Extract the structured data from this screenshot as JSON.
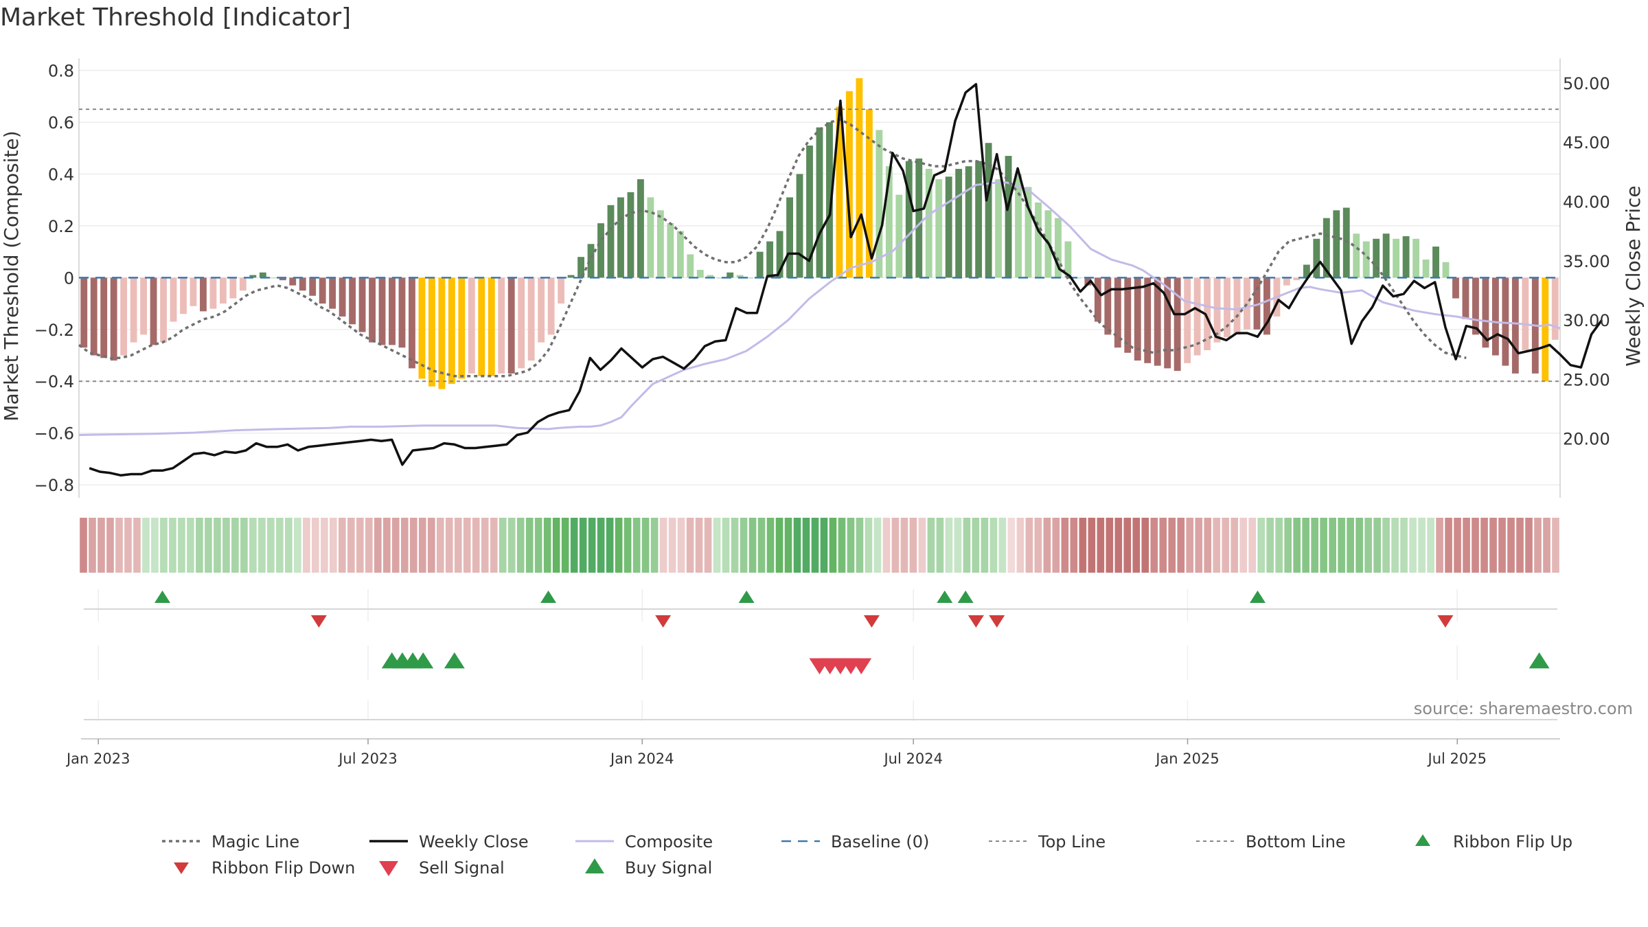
{
  "chart_data": {
    "type": "bar",
    "title": "Market Threshold [Indicator]",
    "ylabel_left": "Market Threshold (Composite)",
    "ylabel_right": "Weekly Close Price",
    "source_note": "source: sharemaestro.com",
    "x_start": "2022-12-19",
    "x_end": "2025-09-08",
    "ylim_left": [
      -0.85,
      0.82
    ],
    "ylim_right": [
      15.0,
      51.5
    ],
    "yticks_left": [
      {
        "v": 0.8,
        "label": "0.8"
      },
      {
        "v": 0.6,
        "label": "0.6"
      },
      {
        "v": 0.4,
        "label": "0.4"
      },
      {
        "v": 0.2,
        "label": "0.2"
      },
      {
        "v": 0,
        "label": "0"
      },
      {
        "v": -0.2,
        "label": "−0.2"
      },
      {
        "v": -0.4,
        "label": "−0.4"
      },
      {
        "v": -0.6,
        "label": "−0.6"
      },
      {
        "v": -0.8,
        "label": "−0.8"
      }
    ],
    "yticks_right": [
      {
        "v": 50,
        "label": "50.00"
      },
      {
        "v": 45,
        "label": "45.00"
      },
      {
        "v": 40,
        "label": "40.00"
      },
      {
        "v": 35,
        "label": "35.00"
      },
      {
        "v": 30,
        "label": "30.00"
      },
      {
        "v": 25,
        "label": "25.00"
      },
      {
        "v": 20,
        "label": "20.00"
      }
    ],
    "xticks": [
      {
        "date": "2023-01-01",
        "label": "Jan 2023"
      },
      {
        "date": "2023-07-01",
        "label": "Jul 2023"
      },
      {
        "date": "2024-01-01",
        "label": "Jan 2024"
      },
      {
        "date": "2024-07-01",
        "label": "Jul 2024"
      },
      {
        "date": "2025-01-01",
        "label": "Jan 2025"
      },
      {
        "date": "2025-07-01",
        "label": "Jul 2025"
      }
    ],
    "top_line": 0.65,
    "bottom_line": -0.4,
    "baseline": 0,
    "grid": true,
    "colors": {
      "strong_pos": "#5b8a5b",
      "weak_pos": "#a8d5a2",
      "strong_neg": "#a56a68",
      "weak_neg": "#ecbdb8",
      "extreme": "#ffc000",
      "weekly_close": "#111111",
      "composite": "#c2bbe8",
      "magic_line": "#707070",
      "baseline": "#3b7ab0",
      "threshold": "#888888",
      "flip_up": "#2f9a48",
      "flip_down": "#d13b3b",
      "sell": "#e04050",
      "buy": "#2f9a48"
    },
    "composite_bars": [
      -0.27,
      -0.3,
      -0.31,
      -0.32,
      -0.3,
      -0.25,
      -0.22,
      -0.26,
      -0.25,
      -0.17,
      -0.14,
      -0.11,
      -0.13,
      -0.12,
      -0.1,
      -0.08,
      -0.05,
      0.01,
      0.02,
      0.0,
      -0.01,
      -0.03,
      -0.05,
      -0.07,
      -0.1,
      -0.12,
      -0.15,
      -0.18,
      -0.21,
      -0.25,
      -0.26,
      -0.26,
      -0.27,
      -0.35,
      -0.39,
      -0.42,
      -0.43,
      -0.41,
      -0.39,
      -0.37,
      -0.38,
      -0.38,
      -0.37,
      -0.37,
      -0.35,
      -0.32,
      -0.25,
      -0.22,
      -0.1,
      0.01,
      0.08,
      0.13,
      0.21,
      0.28,
      0.31,
      0.33,
      0.38,
      0.31,
      0.26,
      0.21,
      0.18,
      0.09,
      0.03,
      0.01,
      0.0,
      0.02,
      0.01,
      0.0,
      0.1,
      0.14,
      0.18,
      0.31,
      0.4,
      0.51,
      0.58,
      0.6,
      0.66,
      0.72,
      0.77,
      0.65,
      0.57,
      0.43,
      0.32,
      0.45,
      0.46,
      0.42,
      0.38,
      0.39,
      0.42,
      0.43,
      0.45,
      0.52,
      0.38,
      0.47,
      0.4,
      0.35,
      0.29,
      0.26,
      0.23,
      0.14,
      0.0,
      -0.03,
      -0.17,
      -0.22,
      -0.27,
      -0.29,
      -0.32,
      -0.33,
      -0.34,
      -0.35,
      -0.36,
      -0.33,
      -0.3,
      -0.28,
      -0.25,
      -0.23,
      -0.22,
      -0.2,
      -0.2,
      -0.22,
      -0.15,
      -0.03,
      -0.01,
      0.05,
      0.15,
      0.23,
      0.26,
      0.27,
      0.17,
      0.14,
      0.15,
      0.17,
      0.15,
      0.16,
      0.15,
      0.07,
      0.12,
      0.06,
      -0.08,
      -0.16,
      -0.22,
      -0.27,
      -0.3,
      -0.34,
      -0.37,
      -0.28,
      -0.37,
      -0.4,
      -0.24
    ],
    "magic_line": [
      -0.26,
      -0.29,
      -0.3,
      -0.31,
      -0.31,
      -0.3,
      -0.28,
      -0.26,
      -0.25,
      -0.23,
      -0.2,
      -0.18,
      -0.16,
      -0.15,
      -0.13,
      -0.1,
      -0.07,
      -0.05,
      -0.04,
      -0.03,
      -0.04,
      -0.06,
      -0.08,
      -0.11,
      -0.13,
      -0.16,
      -0.19,
      -0.22,
      -0.24,
      -0.26,
      -0.28,
      -0.3,
      -0.32,
      -0.34,
      -0.36,
      -0.37,
      -0.38,
      -0.38,
      -0.38,
      -0.38,
      -0.38,
      -0.38,
      -0.37,
      -0.36,
      -0.33,
      -0.28,
      -0.2,
      -0.11,
      -0.02,
      0.07,
      0.14,
      0.19,
      0.23,
      0.25,
      0.26,
      0.25,
      0.23,
      0.2,
      0.16,
      0.12,
      0.09,
      0.07,
      0.06,
      0.06,
      0.08,
      0.12,
      0.19,
      0.28,
      0.38,
      0.47,
      0.53,
      0.57,
      0.6,
      0.61,
      0.59,
      0.56,
      0.53,
      0.5,
      0.48,
      0.46,
      0.45,
      0.44,
      0.43,
      0.43,
      0.44,
      0.45,
      0.45,
      0.44,
      0.42,
      0.38,
      0.33,
      0.27,
      0.2,
      0.13,
      0.06,
      -0.02,
      -0.08,
      -0.13,
      -0.18,
      -0.21,
      -0.24,
      -0.27,
      -0.28,
      -0.29,
      -0.28,
      -0.28,
      -0.27,
      -0.26,
      -0.24,
      -0.22,
      -0.19,
      -0.15,
      -0.1,
      -0.04,
      0.03,
      0.1,
      0.14,
      0.15,
      0.16,
      0.17,
      0.16,
      0.15,
      0.13,
      0.1,
      0.06,
      0.01,
      -0.05,
      -0.11,
      -0.17,
      -0.22,
      -0.26,
      -0.29,
      -0.3,
      -0.31
    ],
    "magic_line_start": "2022-12-19",
    "weekly_close": [
      17.5,
      17.2,
      17.1,
      16.9,
      17.0,
      17.0,
      17.3,
      17.3,
      17.5,
      18.1,
      18.7,
      18.8,
      18.6,
      18.9,
      18.8,
      19.0,
      19.6,
      19.3,
      19.3,
      19.5,
      19.0,
      19.3,
      19.4,
      19.5,
      19.6,
      19.7,
      19.8,
      19.9,
      19.8,
      19.9,
      17.8,
      19.0,
      19.1,
      19.2,
      19.6,
      19.5,
      19.2,
      19.2,
      19.3,
      19.4,
      19.5,
      20.3,
      20.5,
      21.4,
      21.9,
      22.2,
      22.4,
      24.0,
      26.8,
      25.8,
      26.6,
      27.6,
      26.8,
      26.0,
      26.7,
      26.9,
      26.4,
      25.9,
      26.7,
      27.8,
      28.2,
      28.3,
      31.0,
      30.6,
      30.6,
      33.7,
      33.8,
      35.6,
      35.6,
      35.0,
      37.3,
      38.9,
      48.5,
      37.0,
      38.9,
      35.2,
      38.0,
      44.1,
      42.6,
      39.2,
      39.4,
      42.2,
      42.6,
      46.8,
      49.2,
      49.9,
      40.1,
      44.0,
      39.3,
      42.8,
      39.5,
      37.5,
      36.4,
      34.3,
      33.7,
      32.4,
      33.3,
      32.1,
      32.6,
      32.6,
      32.7,
      32.8,
      33.1,
      32.3,
      30.5,
      30.5,
      31.0,
      30.5,
      28.6,
      28.3,
      28.9,
      28.9,
      28.6,
      29.9,
      31.7,
      31.0,
      32.5,
      33.8,
      34.9,
      33.7,
      32.5,
      28.0,
      29.9,
      31.1,
      32.9,
      32.0,
      32.2,
      33.3,
      32.7,
      33.2,
      29.4,
      26.7,
      29.5,
      29.3,
      28.3,
      28.8,
      28.4,
      27.2,
      27.4,
      27.6,
      27.9,
      27.1,
      26.2,
      26.0,
      28.8,
      30.0
    ],
    "weekly_close_start": "2022-12-26",
    "composite_line": [
      20.3,
      20.4,
      20.5,
      20.7,
      20.8,
      20.9,
      21.0,
      21.0,
      21.1,
      21.1,
      21.1,
      20.9,
      20.8,
      20.9,
      21.0,
      21.0,
      21.1,
      21.4,
      21.8,
      22.8,
      24.6,
      25.8,
      26.3,
      26.7,
      27.4,
      28.6,
      30.0,
      31.8,
      33.2,
      34.4,
      34.9,
      35.8,
      38.5,
      39.2,
      40.3,
      41.4,
      41.6,
      41.6,
      41.0,
      39.5,
      37.9,
      36.0,
      35.1,
      34.6,
      34.2,
      33.0,
      31.6,
      31.0,
      30.9,
      31.3,
      32.0,
      32.7,
      32.8,
      32.6,
      32.3,
      32.5,
      31.5,
      30.8,
      30.5,
      30.3,
      30.0,
      29.8,
      29.7,
      29.5,
      29.6,
      29.3
    ],
    "composite_line_x": [
      "2022-12-19",
      "2023-02-06",
      "2023-03-06",
      "2023-04-03",
      "2023-05-01",
      "2023-06-05",
      "2023-06-19",
      "2023-07-10",
      "2023-08-07",
      "2023-09-04",
      "2023-09-25",
      "2023-10-09",
      "2023-10-30",
      "2023-11-06",
      "2023-11-20",
      "2023-11-27",
      "2023-12-04",
      "2023-12-11",
      "2023-12-18",
      "2023-12-25",
      "2024-01-08",
      "2024-01-29",
      "2024-02-12",
      "2024-02-26",
      "2024-03-11",
      "2024-03-25",
      "2024-04-08",
      "2024-04-22",
      "2024-05-06",
      "2024-05-20",
      "2024-06-03",
      "2024-06-17",
      "2024-07-08",
      "2024-07-15",
      "2024-07-29",
      "2024-08-12",
      "2024-08-26",
      "2024-09-02",
      "2024-09-16",
      "2024-09-30",
      "2024-10-14",
      "2024-10-28",
      "2024-11-11",
      "2024-11-25",
      "2024-12-02",
      "2024-12-16",
      "2024-12-30",
      "2025-01-20",
      "2025-02-03",
      "2025-02-17",
      "2025-03-03",
      "2025-03-17",
      "2025-03-24",
      "2025-03-31",
      "2025-04-14",
      "2025-04-28",
      "2025-05-12",
      "2025-06-02",
      "2025-06-16",
      "2025-06-30",
      "2025-07-14",
      "2025-07-28",
      "2025-08-11",
      "2025-08-25",
      "2025-09-01",
      "2025-09-08"
    ],
    "ribbon": [
      "#ce8a8a",
      "#daa4a4",
      "#daa4a4",
      "#daa4a4",
      "#e4b7b7",
      "#e4b7b7",
      "#e4b7b7",
      "#c6e4c6",
      "#c6e4c6",
      "#b6ddb6",
      "#b6ddb6",
      "#b6ddb6",
      "#b6ddb6",
      "#a7d5a7",
      "#a7d5a7",
      "#a7d5a7",
      "#a7d5a7",
      "#a7d5a7",
      "#a7d5a7",
      "#b6ddb6",
      "#b6ddb6",
      "#b6ddb6",
      "#b6ddb6",
      "#b6ddb6",
      "#c6e4c6",
      "#edcccc",
      "#edcccc",
      "#edcccc",
      "#edcccc",
      "#e4b7b7",
      "#e4b7b7",
      "#e4b7b7",
      "#e4b7b7",
      "#daa4a4",
      "#daa4a4",
      "#daa4a4",
      "#daa4a4",
      "#daa4a4",
      "#daa4a4",
      "#daa4a4",
      "#e4b7b7",
      "#e4b7b7",
      "#e4b7b7",
      "#e4b7b7",
      "#e4b7b7",
      "#e4b7b7",
      "#e4b7b7",
      "#a7d5a7",
      "#a7d5a7",
      "#96cc96",
      "#86c586",
      "#86c586",
      "#74bd74",
      "#63b463",
      "#63b463",
      "#52ab62",
      "#52ab62",
      "#52ab62",
      "#52ab62",
      "#52ab62",
      "#63b463",
      "#74bd74",
      "#86c586",
      "#86c586",
      "#96cc96",
      "#edcccc",
      "#edcccc",
      "#edcccc",
      "#e4b7b7",
      "#e4b7b7",
      "#e4b7b7",
      "#c6e4c6",
      "#b6ddb6",
      "#a7d5a7",
      "#96cc96",
      "#86c586",
      "#86c586",
      "#74bd74",
      "#63b463",
      "#63b463",
      "#52ab62",
      "#52ab62",
      "#52ab62",
      "#52ab62",
      "#63b463",
      "#74bd74",
      "#86c586",
      "#96cc96",
      "#b6ddb6",
      "#c6e4c6",
      "#edcccc",
      "#e4b7b7",
      "#e4b7b7",
      "#e4b7b7",
      "#edcccc",
      "#a7d5a7",
      "#a7d5a7",
      "#c6e4c6",
      "#c6e4c6",
      "#a7d5a7",
      "#a7d5a7",
      "#a7d5a7",
      "#b6ddb6",
      "#c6e4c6",
      "#f2dada",
      "#edcccc",
      "#e4b7b7",
      "#e4b7b7",
      "#daa4a4",
      "#daa4a4",
      "#ce8a8a",
      "#ce8a8a",
      "#c27474",
      "#c27474",
      "#c27474",
      "#c27474",
      "#c27474",
      "#c27474",
      "#c27474",
      "#c27474",
      "#ce8a8a",
      "#ce8a8a",
      "#ce8a8a",
      "#ce8a8a",
      "#daa4a4",
      "#daa4a4",
      "#daa4a4",
      "#e4b7b7",
      "#e4b7b7",
      "#e4b7b7",
      "#edcccc",
      "#edcccc",
      "#b6ddb6",
      "#a7d5a7",
      "#a7d5a7",
      "#96cc96",
      "#86c586",
      "#86c586",
      "#86c586",
      "#86c586",
      "#86c586",
      "#86c586",
      "#86c586",
      "#86c586",
      "#96cc96",
      "#96cc96",
      "#a7d5a7",
      "#b6ddb6",
      "#b6ddb6",
      "#c6e4c6",
      "#c6e4c6",
      "#c6e4c6",
      "#daa4a4",
      "#ce8a8a",
      "#ce8a8a",
      "#ce8a8a",
      "#ce8a8a",
      "#ce8a8a",
      "#ce8a8a",
      "#ce8a8a",
      "#ce8a8a",
      "#ce8a8a",
      "#ce8a8a",
      "#daa4a4",
      "#daa4a4",
      "#e4b7b7"
    ],
    "ribbon_flip_up": [
      "2023-02-13",
      "2023-10-30",
      "2024-03-11",
      "2024-07-22",
      "2024-08-05",
      "2025-02-17"
    ],
    "ribbon_flip_down": [
      "2023-05-29",
      "2024-01-15",
      "2024-06-03",
      "2024-08-12",
      "2024-08-26",
      "2025-06-23"
    ],
    "buy_signal": [
      "2023-07-17",
      "2023-07-24",
      "2023-07-31",
      "2023-08-07",
      "2023-08-28",
      "2025-08-25"
    ],
    "sell_signal": [
      "2024-04-29",
      "2024-05-06",
      "2024-05-13",
      "2024-05-20",
      "2024-05-27"
    ],
    "legend": [
      {
        "key": "magic",
        "label": "Magic Line"
      },
      {
        "key": "close",
        "label": "Weekly Close"
      },
      {
        "key": "composite",
        "label": "Composite"
      },
      {
        "key": "baseline",
        "label": "Baseline (0)"
      },
      {
        "key": "top",
        "label": "Top Line"
      },
      {
        "key": "bottom",
        "label": "Bottom Line"
      },
      {
        "key": "flipup",
        "label": "Ribbon Flip Up"
      },
      {
        "key": "flipdown",
        "label": "Ribbon Flip Down"
      },
      {
        "key": "sell",
        "label": "Sell Signal"
      },
      {
        "key": "buy",
        "label": "Buy Signal"
      }
    ],
    "legend_placement": "bottom-center"
  }
}
